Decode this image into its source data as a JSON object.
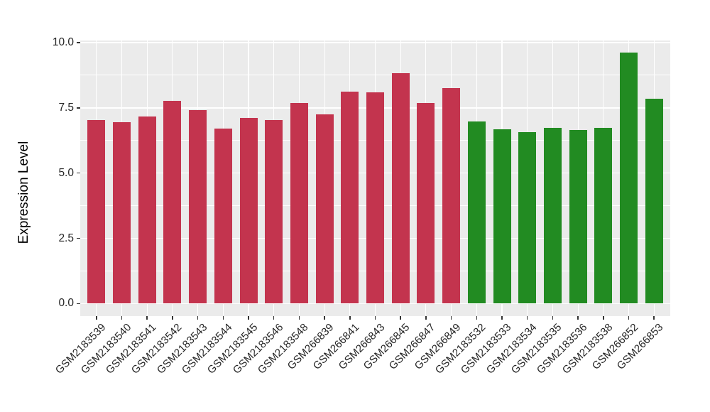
{
  "chart_data": {
    "type": "bar",
    "title": "",
    "xlabel": "",
    "ylabel": "Expression Level",
    "ylim": [
      -0.48,
      10.08
    ],
    "yticks": [
      0,
      2.5,
      5,
      7.5,
      10
    ],
    "ytick_labels": [
      "0.0",
      "2.5",
      "5.0",
      "7.5",
      "10.0"
    ],
    "yticks_minor": [
      1.25,
      3.75,
      6.25,
      8.75
    ],
    "grid": "white major+minor horizontal lines and major vertical lines on gray panel",
    "legend": "none",
    "categories": [
      "GSM2183539",
      "GSM2183540",
      "GSM2183541",
      "GSM2183542",
      "GSM2183543",
      "GSM2183544",
      "GSM2183545",
      "GSM2183546",
      "GSM2183548",
      "GSM266839",
      "GSM266841",
      "GSM266843",
      "GSM266845",
      "GSM266847",
      "GSM266849",
      "GSM2183532",
      "GSM2183533",
      "GSM2183534",
      "GSM2183535",
      "GSM2183536",
      "GSM2183538",
      "GSM266852",
      "GSM266853"
    ],
    "values": [
      7.02,
      6.94,
      7.16,
      7.78,
      7.42,
      6.7,
      7.12,
      7.04,
      7.68,
      7.26,
      8.12,
      8.09,
      8.84,
      7.69,
      8.27,
      6.99,
      6.69,
      6.56,
      6.74,
      6.65,
      6.73,
      9.62,
      7.85
    ],
    "bar_groups": [
      "red",
      "red",
      "red",
      "red",
      "red",
      "red",
      "red",
      "red",
      "red",
      "red",
      "red",
      "red",
      "red",
      "red",
      "red",
      "green",
      "green",
      "green",
      "green",
      "green",
      "green",
      "green",
      "green"
    ]
  },
  "style": {
    "group_colors": {
      "red": "#C3344E",
      "green": "#228B22"
    },
    "panel_bg": "#EBEBEB",
    "grid_color": "#FFFFFF",
    "tick_color": "#333333",
    "tick_label_color": "#262626",
    "axis_title_color": "#000000"
  }
}
